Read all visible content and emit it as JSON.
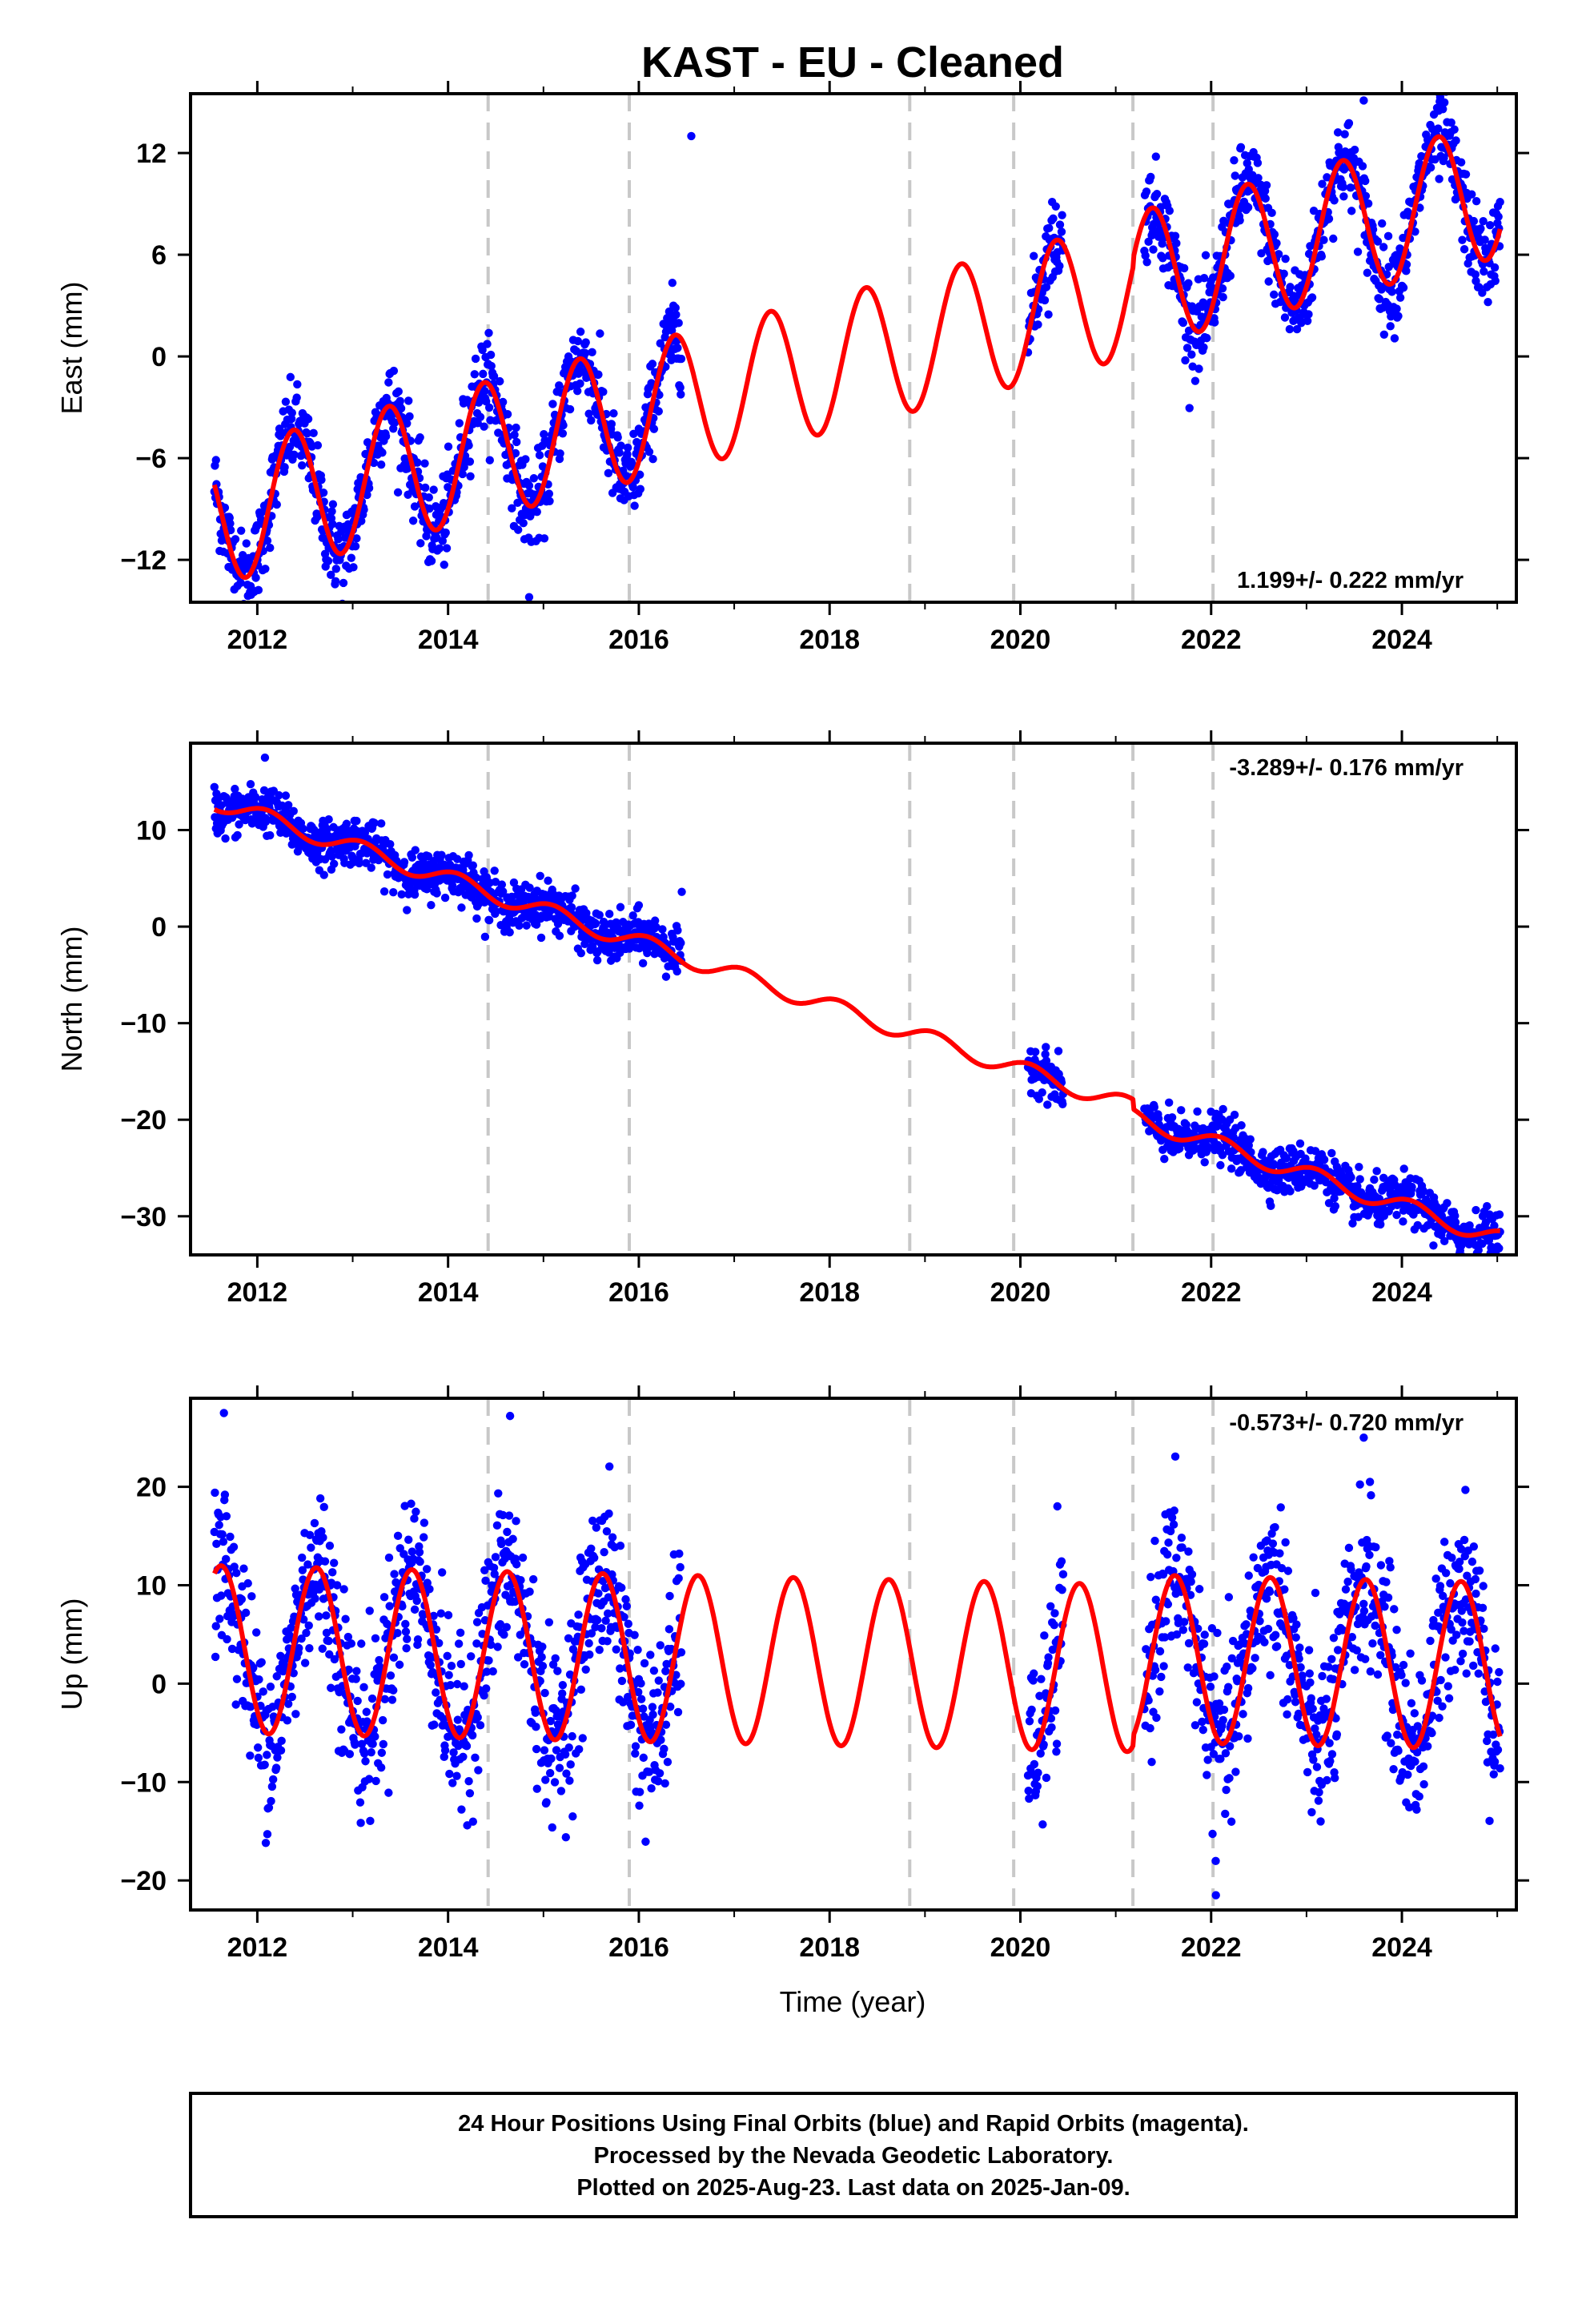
{
  "chart_data": {
    "type": "scatter",
    "title": "KAST  - EU - Cleaned",
    "xlabel": "Time (year)",
    "x_range": [
      2011.3,
      2025.2
    ],
    "x_ticks": [
      2012,
      2014,
      2016,
      2018,
      2020,
      2022,
      2024
    ],
    "x_tick_labels": [
      "2012",
      "2014",
      "2016",
      "2018",
      "2020",
      "2022",
      "2024"
    ],
    "vertical_dashed_lines": [
      2014.42,
      2015.9,
      2018.84,
      2019.93,
      2021.18,
      2022.02
    ],
    "observation_segments": [
      [
        2011.55,
        2016.45
      ],
      [
        2020.08,
        2020.45
      ],
      [
        2021.3,
        2025.03
      ]
    ],
    "colors": {
      "final_orbits": "#0000ff",
      "model_fit": "#ff0000",
      "dashed_lines": "#c8c8c8",
      "frame": "#000000"
    },
    "panels": [
      {
        "id": "east",
        "ylabel": "East (mm)",
        "ylim": [
          -14.5,
          15.5
        ],
        "y_ticks": [
          -12,
          -6,
          0,
          6,
          12
        ],
        "y_tick_labels": [
          "−12",
          "−6",
          "0",
          "6",
          "12"
        ],
        "rate_label": "1.199+/- 0.222 mm/yr",
        "rate_position": "bottom-right",
        "model": {
          "intercept": -9.5,
          "rate": 1.4,
          "t0": 2011.55,
          "amplitude": 4.0,
          "peak_phase": 0.38,
          "offsets": [
            {
              "t": 2021.18,
              "dy": 0.5
            }
          ]
        },
        "scatter_std": 1.3,
        "extra_points": [
          {
            "x": 2016.55,
            "y": 13.0
          },
          {
            "x": 2023.6,
            "y": 15.1
          },
          {
            "x": 2014.85,
            "y": -14.2
          }
        ]
      },
      {
        "id": "north",
        "ylabel": "North (mm)",
        "ylim": [
          -34,
          19
        ],
        "y_ticks": [
          -30,
          -20,
          -10,
          0,
          10
        ],
        "y_tick_labels": [
          "−30",
          "−20",
          "−10",
          "0",
          "10"
        ],
        "rate_label": "-3.289+/- 0.176 mm/yr",
        "rate_position": "top-right",
        "model": {
          "intercept": 13.0,
          "rate": -3.289,
          "t0": 2011.55,
          "amplitude": 0.9,
          "peak_phase": 0.1,
          "offsets": [
            {
              "t": 2021.18,
              "dy": -1.0
            }
          ]
        },
        "scatter_std": 1.2,
        "extra_points": [
          {
            "x": 2012.08,
            "y": 17.5
          },
          {
            "x": 2016.45,
            "y": 3.6
          },
          {
            "x": 2024.6,
            "y": -33.0
          }
        ]
      },
      {
        "id": "up",
        "ylabel": "Up (mm)",
        "ylim": [
          -23,
          29
        ],
        "y_ticks": [
          -20,
          -10,
          0,
          10,
          20
        ],
        "y_tick_labels": [
          "−20",
          "−10",
          "0",
          "10",
          "20"
        ],
        "rate_label": "-0.573+/- 0.720 mm/yr",
        "rate_position": "top-right",
        "model": {
          "intercept": 3.5,
          "rate": -0.2,
          "t0": 2011.55,
          "amplitude": 8.5,
          "peak_phase": 0.62,
          "offsets": [
            {
              "t": 2021.18,
              "dy": 1.0
            }
          ]
        },
        "scatter_std": 4.3,
        "extra_points": [
          {
            "x": 2011.65,
            "y": 27.5
          },
          {
            "x": 2014.65,
            "y": 27.2
          },
          {
            "x": 2023.6,
            "y": 25.0
          },
          {
            "x": 2022.05,
            "y": -21.5
          }
        ]
      }
    ]
  },
  "footer": {
    "line1": "24 Hour Positions Using Final Orbits (blue) and Rapid Orbits (magenta).",
    "line2": "Processed by the Nevada Geodetic Laboratory.",
    "line3": "Plotted on 2025-Aug-23. Last data on 2025-Jan-09."
  }
}
